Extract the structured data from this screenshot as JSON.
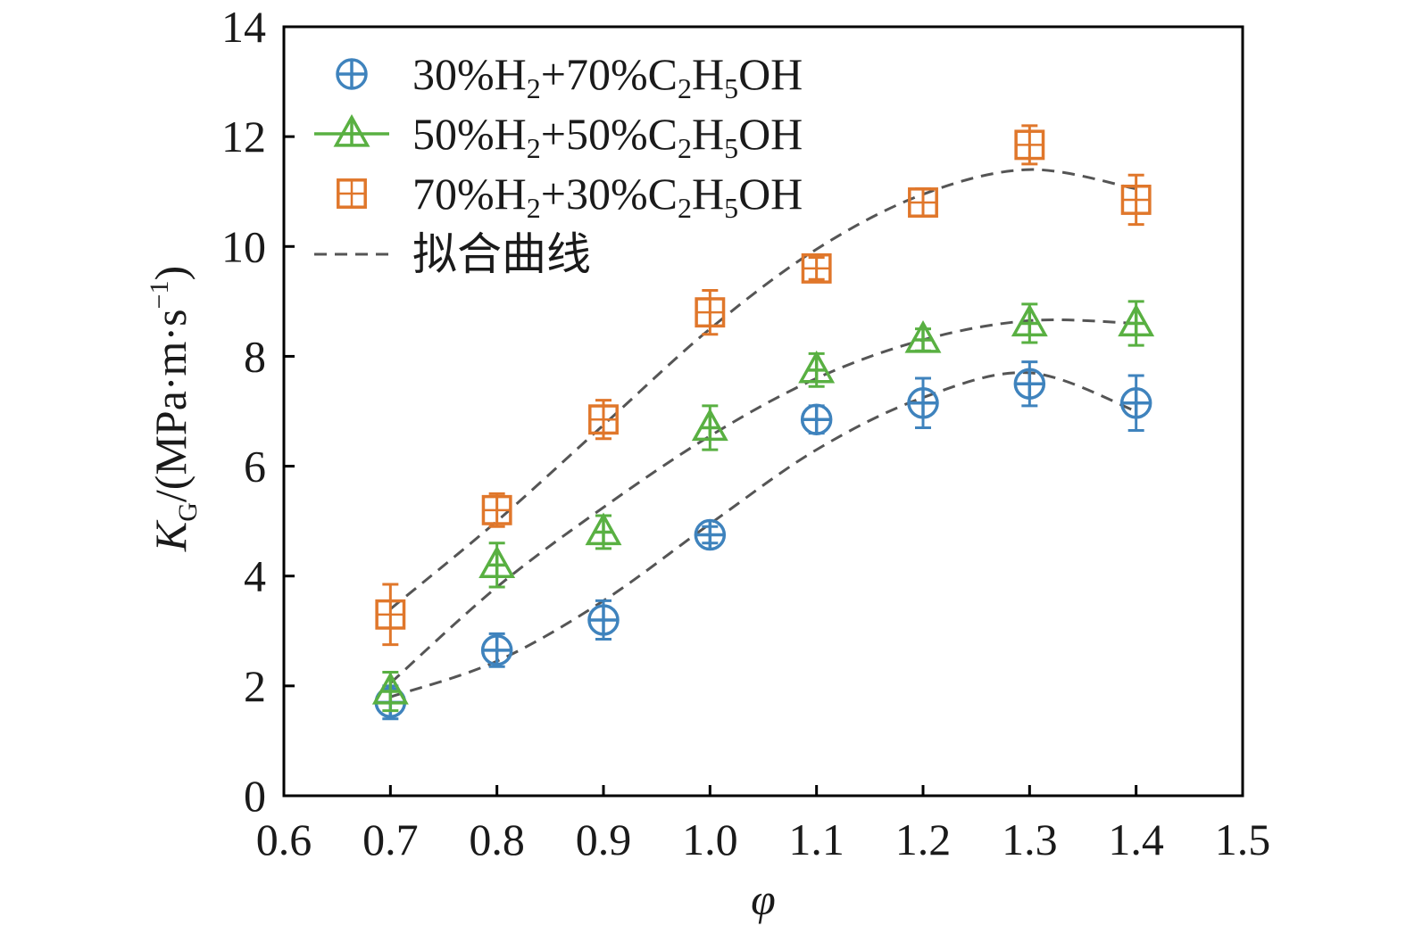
{
  "chart_data": {
    "type": "scatter",
    "xlabel": "φ",
    "ylabel": "K_G/(MPa·m·s^-1)",
    "ylabel_parts": {
      "symbol": "K",
      "subscript": "G",
      "unit_prefix": "/(MPa·m·s",
      "unit_exponent": "−1",
      "unit_suffix": ")"
    },
    "xlim": [
      0.6,
      1.5
    ],
    "ylim": [
      0,
      14
    ],
    "x_ticks": [
      0.6,
      0.7,
      0.8,
      0.9,
      1.0,
      1.1,
      1.2,
      1.3,
      1.4,
      1.5
    ],
    "x_tick_labels": [
      "0.6",
      "0.7",
      "0.8",
      "0.9",
      "1.0",
      "1.1",
      "1.2",
      "1.3",
      "1.4",
      "1.5"
    ],
    "y_ticks": [
      0,
      2,
      4,
      6,
      8,
      10,
      12,
      14
    ],
    "y_tick_labels": [
      "0",
      "2",
      "4",
      "6",
      "8",
      "10",
      "12",
      "14"
    ],
    "grid": false,
    "legend_position": "top-left",
    "x": [
      0.7,
      0.8,
      0.9,
      1.0,
      1.1,
      1.2,
      1.3,
      1.4
    ],
    "series": [
      {
        "legend_label": "30%H2+70%C2H5OH",
        "legend_parts": [
          "30%H",
          "2",
          "+70%C",
          "2",
          "H",
          "5",
          "OH"
        ],
        "marker": "circle-plus",
        "color": "#3f83bd",
        "values": [
          1.7,
          2.65,
          3.2,
          4.75,
          6.85,
          7.15,
          7.5,
          7.15
        ],
        "errors": [
          0.3,
          0.3,
          0.35,
          0.15,
          0.25,
          0.45,
          0.4,
          0.5
        ],
        "fit": [
          1.8,
          2.45,
          3.55,
          4.95,
          6.3,
          7.25,
          7.7,
          7.0
        ]
      },
      {
        "legend_label": "50%H2+50%C2H5OH",
        "legend_parts": [
          "50%H",
          "2",
          "+50%C",
          "2",
          "H",
          "5",
          "OH"
        ],
        "marker": "triangle-plus",
        "color": "#59b042",
        "values": [
          1.9,
          4.2,
          4.8,
          6.7,
          7.75,
          8.3,
          8.6,
          8.6
        ],
        "errors": [
          0.35,
          0.4,
          0.3,
          0.4,
          0.3,
          0.2,
          0.35,
          0.4
        ],
        "fit": [
          2.05,
          3.8,
          5.25,
          6.55,
          7.6,
          8.3,
          8.65,
          8.6
        ]
      },
      {
        "legend_label": "70%H2+30%C2H5OH",
        "legend_parts": [
          "70%H",
          "2",
          "+30%C",
          "2",
          "H",
          "5",
          "OH"
        ],
        "marker": "square-plus",
        "color": "#e0772b",
        "values": [
          3.3,
          5.2,
          6.85,
          8.8,
          9.6,
          10.8,
          11.85,
          10.85
        ],
        "errors": [
          0.55,
          0.3,
          0.35,
          0.4,
          0.2,
          0.25,
          0.35,
          0.45
        ],
        "fit": [
          3.4,
          5.0,
          6.75,
          8.5,
          9.95,
          10.95,
          11.4,
          11.05
        ]
      }
    ],
    "fit_legend_label": "拟合曲线",
    "fit_style": "dashed",
    "fit_color": "#555555"
  }
}
